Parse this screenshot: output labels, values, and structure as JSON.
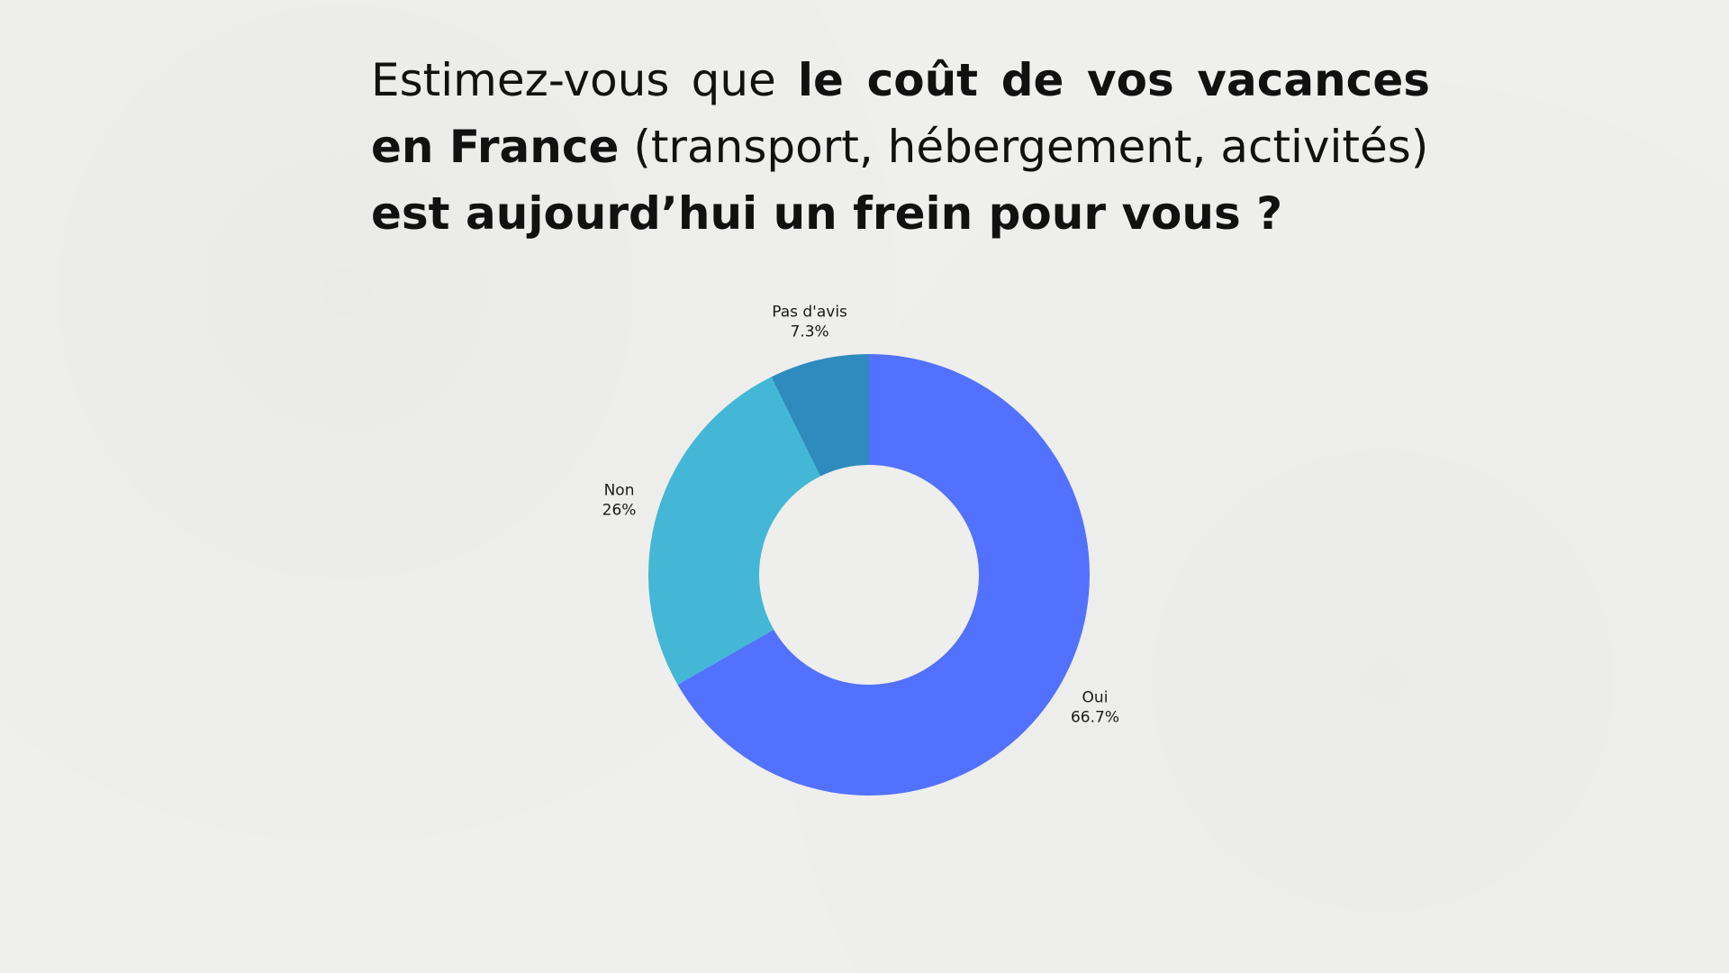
{
  "question": {
    "part1": "Estimez-vous que ",
    "part2_bold": "le coût de vos vacances en France",
    "part3": " (transport, hébergement, activités) ",
    "part4_bold": "est aujourd’hui un frein pour vous ?"
  },
  "chart_data": {
    "type": "pie",
    "donut": true,
    "title": "Estimez-vous que le coût de vos vacances en France (transport, hébergement, activités) est aujourd’hui un frein pour vous ?",
    "slices": [
      {
        "label": "Oui",
        "value": 66.7,
        "value_label": "66.7%",
        "color": "#5271ff"
      },
      {
        "label": "Non",
        "value": 26,
        "value_label": "26%",
        "color": "#43b7d5"
      },
      {
        "label": "Pas d'avis",
        "value": 7.3,
        "value_label": "7.3%",
        "color": "#2e8bbd"
      }
    ],
    "start_angle": "top (12 o'clock), clockwise",
    "legend": "none"
  },
  "colors": {
    "background": "#efefed",
    "text": "#111111"
  }
}
